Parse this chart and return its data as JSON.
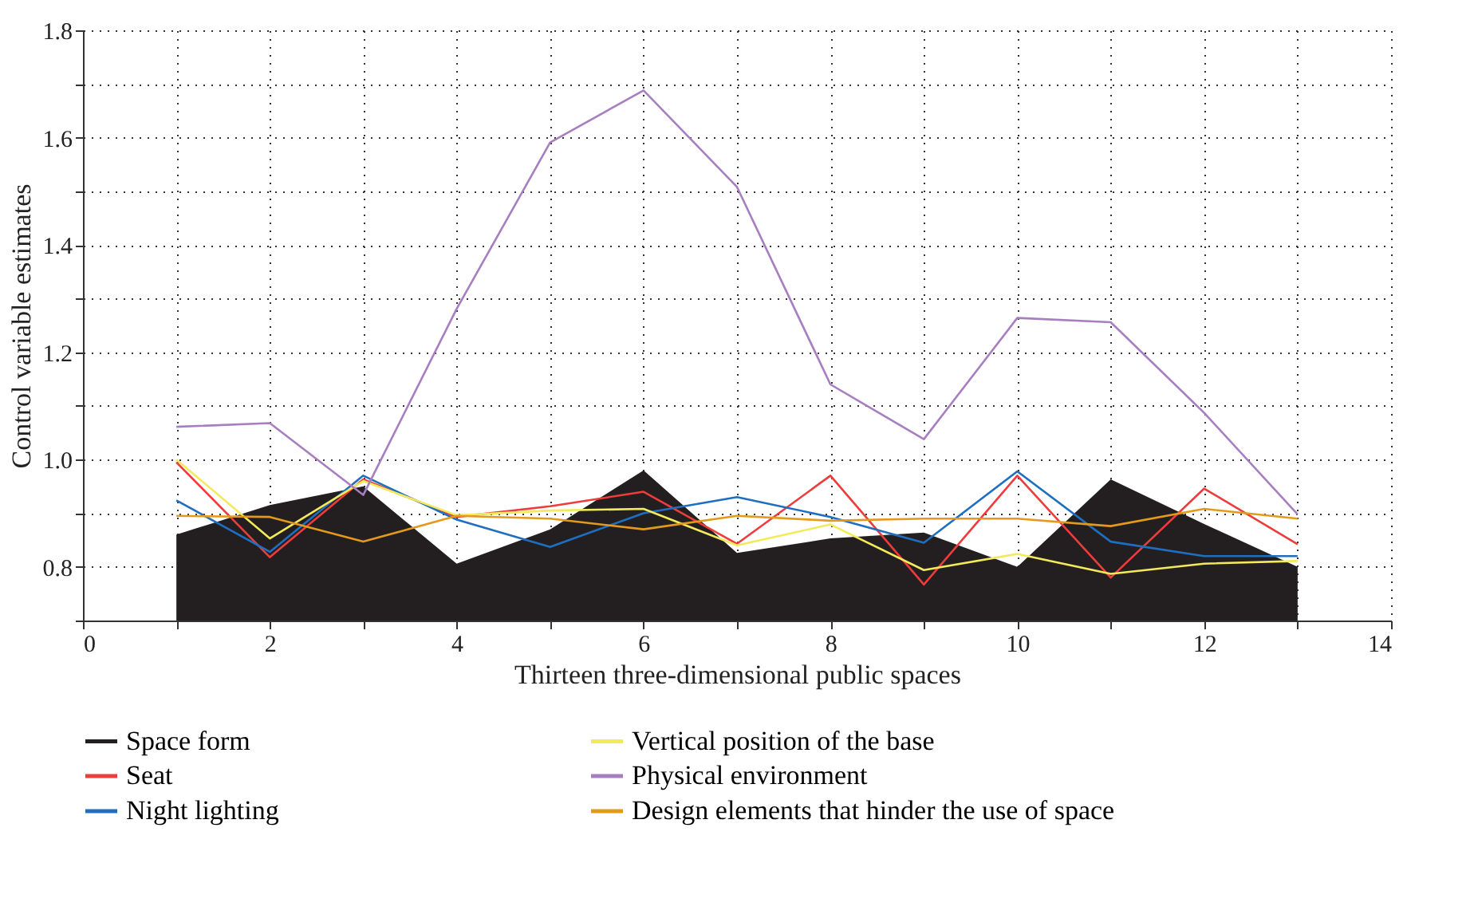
{
  "chart_data": {
    "type": "line",
    "xlabel": "Thirteen three-dimensional public spaces",
    "ylabel": "Control variable estimates",
    "x": [
      1,
      2,
      3,
      4,
      5,
      6,
      7,
      8,
      9,
      10,
      11,
      12,
      13
    ],
    "xlim": [
      0,
      14
    ],
    "xticks": [
      0,
      {
        "value": 1,
        "label": null
      },
      2,
      {
        "value": 3,
        "label": null
      },
      4,
      {
        "value": 5,
        "label": null
      },
      6,
      {
        "value": 7,
        "label": null
      },
      8,
      {
        "value": 9,
        "label": null
      },
      10,
      {
        "value": 11,
        "label": null
      },
      12,
      {
        "value": 13,
        "label": null
      },
      14
    ],
    "ylim": [
      0.7,
      1.8
    ],
    "yticks": [
      {
        "value": 0.7,
        "label": null
      },
      0.8,
      {
        "value": 0.9,
        "label": null
      },
      {
        "value": 1,
        "label": "1.0"
      },
      {
        "value": 1.1,
        "label": null
      },
      1.2,
      {
        "value": 1.3,
        "label": null
      },
      1.4,
      {
        "value": 1.5,
        "label": null
      },
      1.6,
      {
        "value": 1.7,
        "label": null
      },
      1.8
    ],
    "grid": true,
    "legend": "bottom",
    "series": [
      {
        "name": "Space form",
        "type": "area",
        "color": "#231f20",
        "values": [
          0.86,
          0.915,
          0.95,
          0.806,
          0.87,
          0.98,
          0.826,
          0.853,
          0.864,
          0.8,
          0.963,
          0.88,
          0.8
        ]
      },
      {
        "name": "Seat",
        "color": "#ee3b3b",
        "values": [
          0.995,
          0.818,
          0.963,
          0.893,
          0.913,
          0.94,
          0.843,
          0.97,
          0.767,
          0.97,
          0.78,
          0.946,
          0.842
        ]
      },
      {
        "name": "Night lighting",
        "color": "#1f6fc0",
        "values": [
          0.924,
          0.828,
          0.97,
          0.888,
          0.837,
          0.9,
          0.93,
          0.893,
          0.845,
          0.978,
          0.847,
          0.82,
          0.82
        ]
      },
      {
        "name": "Vertical position of the base",
        "color": "#f2ea5a",
        "values": [
          1.0,
          0.853,
          0.96,
          0.896,
          0.905,
          0.908,
          0.84,
          0.879,
          0.794,
          0.824,
          0.787,
          0.806,
          0.811
        ]
      },
      {
        "name": "Physical environment",
        "color": "#a77fc0",
        "values": [
          1.061,
          1.068,
          0.934,
          1.281,
          1.591,
          1.688,
          1.508,
          1.14,
          1.038,
          1.264,
          1.256,
          1.087,
          0.898
        ]
      },
      {
        "name": "Design elements that hinder the use of space",
        "color": "#e39a1c",
        "values": [
          0.895,
          0.893,
          0.847,
          0.895,
          0.89,
          0.87,
          0.895,
          0.886,
          0.89,
          0.89,
          0.876,
          0.908,
          0.89
        ]
      }
    ]
  }
}
